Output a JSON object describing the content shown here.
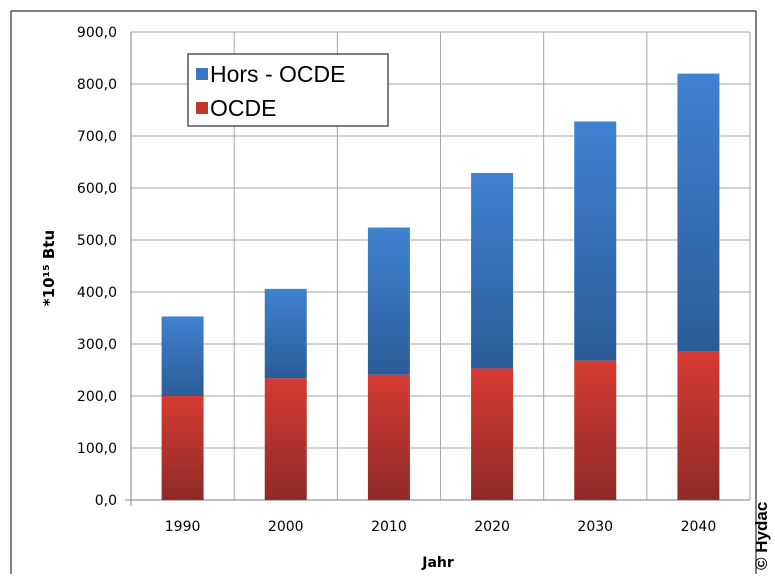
{
  "chart_data": {
    "type": "bar",
    "stacked": true,
    "categories": [
      "1990",
      "2000",
      "2010",
      "2020",
      "2030",
      "2040"
    ],
    "series": [
      {
        "name": "OCDE",
        "color": "#c0392b",
        "values": [
          200,
          234,
          241,
          253,
          268,
          285
        ]
      },
      {
        "name": "Hors - OCDE",
        "color": "#3a77c2",
        "values": [
          153,
          172,
          283,
          376,
          460,
          535
        ]
      }
    ],
    "xlabel": "Jahr",
    "ylabel": "*10¹⁵ Btu",
    "ylim": [
      0,
      900
    ],
    "yticks": [
      "0,0",
      "100,0",
      "200,0",
      "300,0",
      "400,0",
      "500,0",
      "600,0",
      "700,0",
      "800,0",
      "900,0"
    ],
    "grid": true,
    "legend_position": "top-left",
    "legend_order": [
      "Hors - OCDE",
      "OCDE"
    ]
  },
  "copyright": "© Hydac"
}
